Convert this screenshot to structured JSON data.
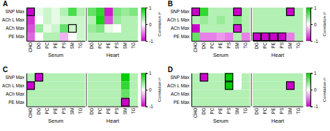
{
  "chart_data": [
    {
      "type": "heatmap",
      "title": "A",
      "rows": [
        "SNP Max",
        "ACh L Max",
        "ACh Max",
        "PE Max"
      ],
      "sections": [
        {
          "xlabel": "Serum",
          "columns": [
            "CHO",
            "DG",
            "PC",
            "PE",
            "PS",
            "SM",
            "TG"
          ],
          "values": [
            [
              -1.0,
              0.1,
              0.2,
              0.1,
              0.3,
              0.7,
              0.3
            ],
            [
              -0.8,
              0.0,
              0.2,
              0.1,
              0.2,
              0.2,
              0.2
            ],
            [
              -0.7,
              0.4,
              0.1,
              0.2,
              0.6,
              0.2,
              0.2
            ],
            [
              -0.6,
              0.0,
              0.3,
              0.3,
              -0.3,
              0.0,
              0.2
            ]
          ],
          "borders": [
            [
              0,
              0
            ],
            [
              2,
              5
            ]
          ]
        },
        {
          "xlabel": "Heart",
          "columns": [
            "DG",
            "PC",
            "PE",
            "PS",
            "SM",
            "TG"
          ],
          "values": [
            [
              0.6,
              0.8,
              -0.9,
              0.5,
              0.4,
              0.5
            ],
            [
              0.3,
              0.9,
              -0.7,
              0.4,
              0.3,
              0.3
            ],
            [
              0.4,
              0.5,
              0.1,
              0.0,
              0.3,
              0.3
            ],
            [
              0.3,
              0.3,
              0.3,
              0.3,
              0.3,
              0.3
            ]
          ],
          "borders": []
        }
      ],
      "colorbar_range": [
        -1,
        1
      ],
      "colorbar_ticks": [
        1,
        0,
        -1
      ],
      "colorbar_label": "Correlation r²",
      "colorbar_colors": [
        "#cc00cc",
        "#ffffff",
        "#00cc00"
      ],
      "border_color": "#000000"
    },
    {
      "type": "heatmap",
      "title": "B",
      "rows": [
        "SNP Max",
        "ACh L Max",
        "ACh Max",
        "PE Max"
      ],
      "sections": [
        {
          "xlabel": "Serum",
          "columns": [
            "CHO",
            "DG",
            "PC",
            "PE",
            "PS",
            "SM",
            "TG"
          ],
          "values": [
            [
              -1.0,
              0.8,
              0.3,
              0.3,
              0.3,
              -1.0,
              0.3
            ],
            [
              0.3,
              0.4,
              0.3,
              0.4,
              0.3,
              0.5,
              0.3
            ],
            [
              -1.0,
              0.3,
              0.3,
              0.3,
              0.3,
              -0.9,
              0.3
            ],
            [
              0.6,
              -0.5,
              -0.5,
              -0.4,
              -0.5,
              0.3,
              -0.5
            ]
          ],
          "borders": [
            [
              0,
              0
            ],
            [
              0,
              5
            ],
            [
              2,
              5
            ]
          ]
        },
        {
          "xlabel": "Heart",
          "columns": [
            "DG",
            "PC",
            "PE",
            "PS",
            "SM",
            "TG"
          ],
          "values": [
            [
              0.3,
              0.3,
              0.3,
              0.3,
              -1.0,
              0.3
            ],
            [
              0.3,
              0.3,
              0.3,
              0.3,
              0.3,
              0.3
            ],
            [
              0.3,
              0.3,
              0.3,
              0.3,
              0.3,
              0.3
            ],
            [
              -1.0,
              -1.0,
              -1.0,
              -1.0,
              -0.5,
              0.3
            ]
          ],
          "borders": [
            [
              0,
              4
            ],
            [
              3,
              0
            ],
            [
              3,
              1
            ],
            [
              3,
              2
            ],
            [
              3,
              3
            ]
          ]
        }
      ],
      "colorbar_range": [
        -1,
        1
      ],
      "colorbar_ticks": [
        1,
        0,
        -1
      ],
      "colorbar_label": "Correlation r²",
      "colorbar_colors": [
        "#cc00cc",
        "#ffffff",
        "#00cc00"
      ],
      "border_color": "#000000"
    },
    {
      "type": "heatmap",
      "title": "C",
      "rows": [
        "SNP Max",
        "ACh L Max",
        "ACh Max",
        "PE Max"
      ],
      "sections": [
        {
          "xlabel": "Serum",
          "columns": [
            "CHO",
            "DG",
            "PC",
            "PE",
            "PS",
            "SM",
            "TG"
          ],
          "values": [
            [
              0.3,
              -1.0,
              0.3,
              0.3,
              0.3,
              0.3,
              0.3
            ],
            [
              -1.0,
              0.3,
              0.3,
              0.3,
              0.3,
              0.3,
              0.3
            ],
            [
              0.3,
              0.3,
              0.3,
              0.3,
              0.3,
              0.3,
              0.3
            ],
            [
              0.3,
              0.3,
              0.3,
              0.3,
              0.3,
              0.3,
              0.3
            ]
          ],
          "borders": [
            [
              0,
              1
            ],
            [
              1,
              0
            ]
          ]
        },
        {
          "xlabel": "Heart",
          "columns": [
            "DG",
            "PC",
            "PE",
            "PS",
            "SM",
            "TG"
          ],
          "values": [
            [
              0.3,
              0.3,
              0.3,
              0.3,
              1.0,
              0.3
            ],
            [
              0.3,
              0.3,
              0.3,
              0.3,
              0.8,
              0.3
            ],
            [
              0.3,
              0.3,
              0.3,
              0.3,
              0.6,
              0.3
            ],
            [
              0.3,
              0.3,
              0.3,
              0.3,
              -1.0,
              0.3
            ]
          ],
          "borders": [
            [
              3,
              4
            ]
          ]
        }
      ],
      "colorbar_range": [
        -1,
        1
      ],
      "colorbar_ticks": [
        1,
        0,
        -1
      ],
      "colorbar_label": "Correlation r²",
      "colorbar_colors": [
        "#cc00cc",
        "#ffffff",
        "#00cc00"
      ],
      "border_color": "#000000"
    },
    {
      "type": "heatmap",
      "title": "D",
      "rows": [
        "SNP Max",
        "ACh L Max",
        "ACh Max",
        "PE Max"
      ],
      "sections": [
        {
          "xlabel": "Serum",
          "columns": [
            "CHO",
            "DG",
            "PC",
            "PE",
            "PS",
            "SM",
            "TG"
          ],
          "values": [
            [
              0.3,
              -1.0,
              0.3,
              0.3,
              1.0,
              0.0,
              0.3
            ],
            [
              0.3,
              0.3,
              0.3,
              0.3,
              1.0,
              0.0,
              0.3
            ],
            [
              0.3,
              0.3,
              0.3,
              0.3,
              0.3,
              0.3,
              0.3
            ],
            [
              0.3,
              0.3,
              0.3,
              0.3,
              0.3,
              0.3,
              0.3
            ]
          ],
          "borders": [
            [
              0,
              1
            ],
            [
              0,
              4
            ],
            [
              1,
              4
            ]
          ]
        },
        {
          "xlabel": "Heart",
          "columns": [
            "DG",
            "PC",
            "PE",
            "PS",
            "SM",
            "TG"
          ],
          "values": [
            [
              0.3,
              0.3,
              0.3,
              0.3,
              0.3,
              0.3
            ],
            [
              0.3,
              0.3,
              0.3,
              0.3,
              -1.0,
              0.3
            ],
            [
              0.3,
              0.3,
              0.3,
              0.3,
              0.3,
              0.3
            ],
            [
              0.3,
              0.3,
              0.3,
              0.3,
              0.3,
              0.3
            ]
          ],
          "borders": [
            [
              1,
              4
            ]
          ]
        }
      ],
      "colorbar_range": [
        -1,
        1
      ],
      "colorbar_ticks": [
        1,
        0,
        -1
      ],
      "colorbar_label": "Correlation r²",
      "colorbar_colors": [
        "#cc00cc",
        "#ffffff",
        "#00cc00"
      ],
      "border_color": "#000000"
    }
  ]
}
